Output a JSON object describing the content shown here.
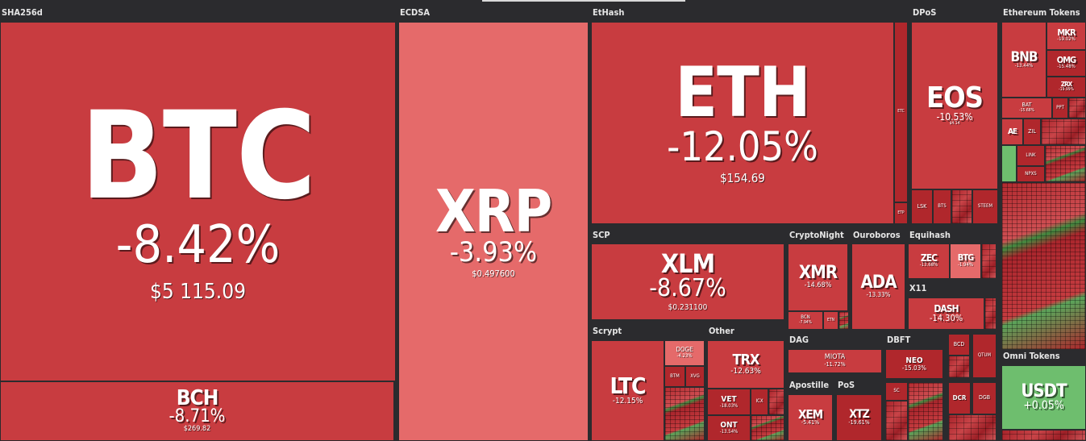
{
  "groups": {
    "sha256d": "SHA256d",
    "ecdsa": "ECDSA",
    "ethash": "EtHash",
    "dpos": "DPoS",
    "eth_tokens": "Ethereum Tokens",
    "scp": "SCP",
    "cryptonight": "CryptoNight",
    "ouroboros": "Ouroboros",
    "equihash": "Equihash",
    "x11": "X11",
    "scrypt": "Scrypt",
    "other": "Other",
    "dag": "DAG",
    "dbft": "DBFT",
    "apostille": "Apostille",
    "pos": "PoS",
    "omni": "Omni Tokens"
  },
  "coins": {
    "btc": {
      "sym": "BTC",
      "chg": "-8.42%",
      "price": "$5 115.09"
    },
    "bch": {
      "sym": "BCH",
      "chg": "-8.71%",
      "price": "$269.82"
    },
    "xrp": {
      "sym": "XRP",
      "chg": "-3.93%",
      "price": "$0.497600"
    },
    "eth": {
      "sym": "ETH",
      "chg": "-12.05%",
      "price": "$154.69"
    },
    "etc": {
      "sym": "ETC"
    },
    "etp": {
      "sym": "ETP"
    },
    "eos": {
      "sym": "EOS",
      "chg": "-10.53%",
      "price": "$4.14"
    },
    "lsk": {
      "sym": "LSK"
    },
    "bts": {
      "sym": "BTS"
    },
    "steem": {
      "sym": "STEEM"
    },
    "bnb": {
      "sym": "BNB",
      "chg": "-13.44%"
    },
    "mkr": {
      "sym": "MKR",
      "chg": "-19.02%"
    },
    "omg": {
      "sym": "OMG",
      "chg": "-15.48%"
    },
    "zrx": {
      "sym": "ZRX",
      "chg": "-19.99%"
    },
    "bat": {
      "sym": "BAT",
      "chg": "-15.68%"
    },
    "ppt": {
      "sym": "PPT"
    },
    "ae": {
      "sym": "AE"
    },
    "zil": {
      "sym": "ZIL"
    },
    "link": {
      "sym": "LINK"
    },
    "npxs": {
      "sym": "NPXS"
    },
    "xlm": {
      "sym": "XLM",
      "chg": "-8.67%",
      "price": "$0.231100"
    },
    "xmr": {
      "sym": "XMR",
      "chg": "-14.68%"
    },
    "bcn": {
      "sym": "BCN",
      "chg": "-7.94%"
    },
    "etn": {
      "sym": "ETN"
    },
    "ada": {
      "sym": "ADA",
      "chg": "-13.33%"
    },
    "zec": {
      "sym": "ZEC",
      "chg": "-13.68%"
    },
    "btg": {
      "sym": "BTG",
      "chg": "-1.94%"
    },
    "dash": {
      "sym": "DASH",
      "chg": "-14.30%"
    },
    "ltc": {
      "sym": "LTC",
      "chg": "-12.15%"
    },
    "doge": {
      "sym": "DOGE",
      "chg": "-4.23%"
    },
    "btm": {
      "sym": "BTM"
    },
    "xvg": {
      "sym": "XVG"
    },
    "trx": {
      "sym": "TRX",
      "chg": "-12.63%"
    },
    "vet": {
      "sym": "VET",
      "chg": "-18.03%"
    },
    "icx": {
      "sym": "ICX"
    },
    "ont": {
      "sym": "ONT",
      "chg": "-13.54%"
    },
    "miota": {
      "sym": "MIOTA",
      "chg": "-11.72%"
    },
    "neo": {
      "sym": "NEO",
      "chg": "-15.03%"
    },
    "bcd": {
      "sym": "BCD"
    },
    "qtum": {
      "sym": "QTUM"
    },
    "xem": {
      "sym": "XEM",
      "chg": "-5.41%"
    },
    "xtz": {
      "sym": "XTZ",
      "chg": "-19.61%"
    },
    "dcr": {
      "sym": "DCR"
    },
    "dgb": {
      "sym": "DGB"
    },
    "sc": {
      "sym": "SC"
    },
    "usdt": {
      "sym": "USDT",
      "chg": "+0.05%"
    }
  },
  "colors": {
    "background": "#2b2b2e",
    "negative_dark": "#b0272c",
    "negative_mid": "#c83c40",
    "negative_light": "#e56a6a",
    "positive": "#6ebe6e"
  }
}
